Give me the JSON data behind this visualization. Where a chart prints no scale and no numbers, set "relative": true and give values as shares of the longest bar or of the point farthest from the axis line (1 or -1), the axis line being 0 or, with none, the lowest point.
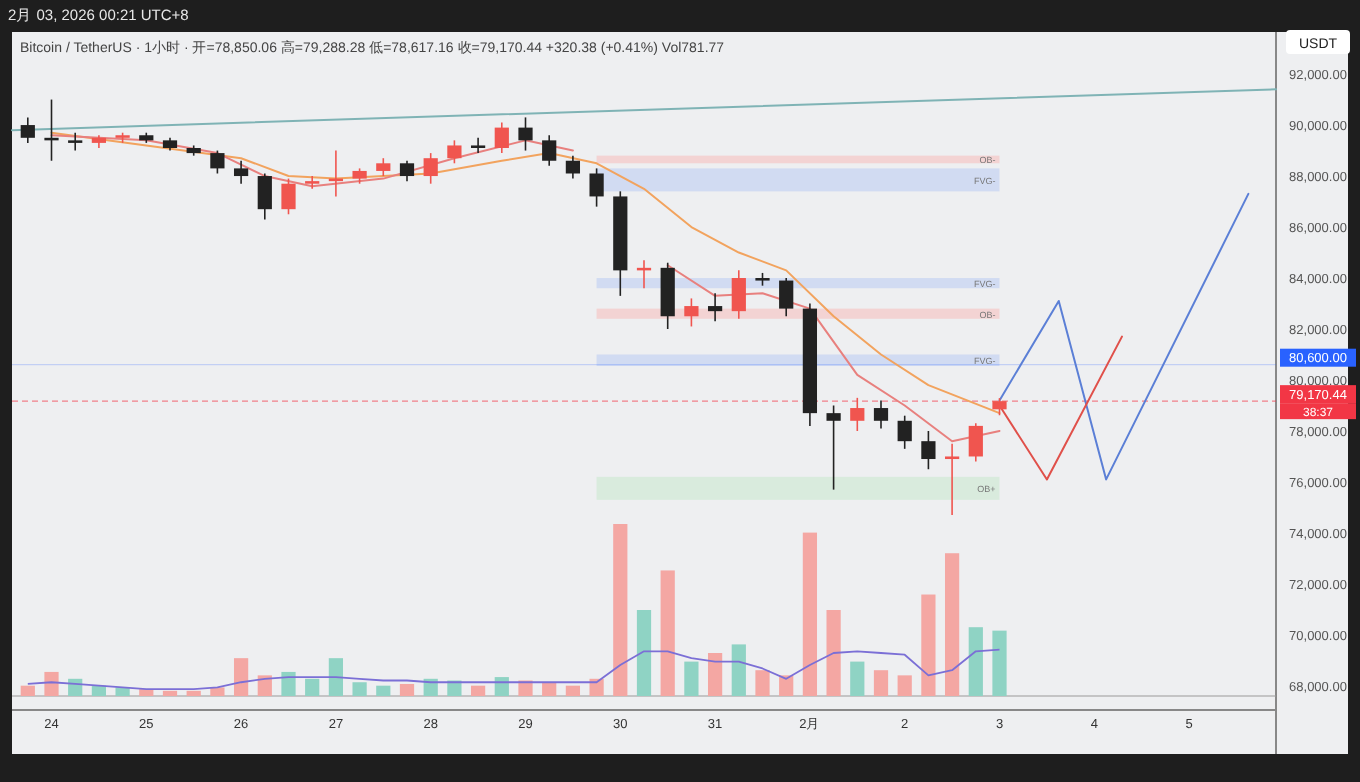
{
  "chart_data": [
    {
      "type": "candlestick",
      "title": "Bitcoin / TetherUS · 1小时 · 开=78,850.06 高=79,288.28 低=78,617.16 收=79,170.44 +320.38 (+0.41%) Vol781.77",
      "subtitle": "2月 03, 2026 00:21 UTC+8",
      "x": [
        "2026-01-23T18:00",
        "2026-01-24T00:00",
        "2026-01-24T06:00",
        "2026-01-24T12:00",
        "2026-01-24T18:00",
        "2026-01-25T00:00",
        "2026-01-25T06:00",
        "2026-01-25T12:00",
        "2026-01-25T18:00",
        "2026-01-26T00:00",
        "2026-01-26T06:00",
        "2026-01-26T12:00",
        "2026-01-26T18:00",
        "2026-01-27T00:00",
        "2026-01-27T06:00",
        "2026-01-27T12:00",
        "2026-01-27T18:00",
        "2026-01-28T00:00",
        "2026-01-28T06:00",
        "2026-01-28T12:00",
        "2026-01-28T18:00",
        "2026-01-29T00:00",
        "2026-01-29T06:00",
        "2026-01-29T12:00",
        "2026-01-29T18:00",
        "2026-01-30T00:00",
        "2026-01-30T06:00",
        "2026-01-30T12:00",
        "2026-01-30T18:00",
        "2026-01-31T00:00",
        "2026-01-31T06:00",
        "2026-01-31T12:00",
        "2026-01-31T18:00",
        "2026-02-01T00:00",
        "2026-02-01T06:00",
        "2026-02-01T12:00",
        "2026-02-01T18:00",
        "2026-02-02T00:00",
        "2026-02-02T06:00",
        "2026-02-02T12:00",
        "2026-02-02T18:00",
        "2026-02-03T00:00"
      ],
      "ohlc": [
        [
          90000,
          90300,
          89300,
          89500
        ],
        [
          89500,
          91000,
          88600,
          89400
        ],
        [
          89400,
          89700,
          89000,
          89300
        ],
        [
          89300,
          89600,
          89100,
          89500
        ],
        [
          89500,
          89700,
          89300,
          89600
        ],
        [
          89600,
          89700,
          89300,
          89400
        ],
        [
          89400,
          89500,
          89000,
          89100
        ],
        [
          89100,
          89200,
          88800,
          88900
        ],
        [
          88900,
          89000,
          88100,
          88300
        ],
        [
          88300,
          88600,
          87700,
          88000
        ],
        [
          88000,
          88100,
          86300,
          86700
        ],
        [
          86700,
          87900,
          86500,
          87700
        ],
        [
          87700,
          88000,
          87500,
          87800
        ],
        [
          87800,
          89000,
          87200,
          87900
        ],
        [
          87900,
          88300,
          87700,
          88200
        ],
        [
          88200,
          88700,
          88000,
          88500
        ],
        [
          88500,
          88600,
          87800,
          88000
        ],
        [
          88000,
          88900,
          87700,
          88700
        ],
        [
          88700,
          89400,
          88500,
          89200
        ],
        [
          89200,
          89500,
          88900,
          89100
        ],
        [
          89100,
          90100,
          88900,
          89900
        ],
        [
          89900,
          90300,
          89000,
          89400
        ],
        [
          89400,
          89600,
          88400,
          88600
        ],
        [
          88600,
          88800,
          87900,
          88100
        ],
        [
          88100,
          88300,
          86800,
          87200
        ],
        [
          87200,
          87400,
          83300,
          84300
        ],
        [
          84300,
          84700,
          83600,
          84400
        ],
        [
          84400,
          84600,
          82000,
          82500
        ],
        [
          82500,
          83200,
          82100,
          82900
        ],
        [
          82900,
          83400,
          82300,
          82700
        ],
        [
          82700,
          84300,
          82400,
          84000
        ],
        [
          84000,
          84200,
          83700,
          83900
        ],
        [
          83900,
          84000,
          82500,
          82800
        ],
        [
          82800,
          83000,
          78200,
          78700
        ],
        [
          78700,
          79000,
          75700,
          78400
        ],
        [
          78400,
          79300,
          78000,
          78900
        ],
        [
          78900,
          79200,
          78100,
          78400
        ],
        [
          78400,
          78600,
          77300,
          77600
        ],
        [
          77600,
          78000,
          76500,
          76900
        ],
        [
          76900,
          77500,
          74700,
          77000
        ],
        [
          77000,
          78300,
          76800,
          78200
        ],
        [
          78850.06,
          79288.28,
          78617.16,
          79170.44
        ]
      ],
      "colors": [
        "#222222",
        "#222222",
        "#222222",
        "#f0554f",
        "#f0554f",
        "#222222",
        "#222222",
        "#222222",
        "#222222",
        "#222222",
        "#222222",
        "#f0554f",
        "#f0554f",
        "#f0554f",
        "#f0554f",
        "#f0554f",
        "#222222",
        "#f0554f",
        "#f0554f",
        "#222222",
        "#f0554f",
        "#222222",
        "#222222",
        "#222222",
        "#222222",
        "#222222",
        "#f0554f",
        "#222222",
        "#f0554f",
        "#222222",
        "#f0554f",
        "#222222",
        "#222222",
        "#222222",
        "#222222",
        "#f0554f",
        "#222222",
        "#222222",
        "#222222",
        "#f0554f",
        "#f0554f",
        "#f0554f"
      ],
      "series": [
        {
          "type": "line",
          "color": "#f2a35e",
          "x": [
            "2026-01-24T00:00",
            "2026-01-25T00:00",
            "2026-01-26T00:00",
            "2026-01-26T12:00",
            "2026-01-27T00:00",
            "2026-01-28T00:00",
            "2026-01-28T18:00",
            "2026-01-29T06:00",
            "2026-01-29T18:00",
            "2026-01-30T06:00",
            "2026-01-30T18:00",
            "2026-01-31T06:00",
            "2026-01-31T18:00",
            "2026-02-01T06:00",
            "2026-02-01T18:00",
            "2026-02-02T06:00",
            "2026-02-03T00:00"
          ],
          "values": [
            89700,
            89200,
            88700,
            88000,
            87900,
            88100,
            88600,
            88900,
            88500,
            87500,
            86000,
            85000,
            84300,
            82500,
            81000,
            79800,
            78700
          ]
        },
        {
          "type": "line",
          "color": "#e8807e",
          "x": [
            "2026-01-24T00:00",
            "2026-01-25T00:00",
            "2026-01-25T18:00",
            "2026-01-26T06:00",
            "2026-01-26T18:00",
            "2026-01-27T12:00",
            "2026-01-28T06:00",
            "2026-01-29T00:00",
            "2026-01-29T12:00",
            "2026-01-30T00:00",
            "2026-01-30T12:00",
            "2026-01-31T00:00",
            "2026-01-31T12:00",
            "2026-02-01T00:00",
            "2026-02-01T12:00",
            "2026-02-02T00:00",
            "2026-02-02T12:00",
            "2026-02-03T00:00"
          ],
          "values": [
            89600,
            89400,
            88900,
            88000,
            87600,
            87900,
            88700,
            89400,
            89000,
            null,
            84500,
            83300,
            83400,
            82800,
            80200,
            79000,
            77600,
            78000
          ]
        },
        {
          "type": "line",
          "color": "#7fb3b5",
          "x": [
            "2026-01-23T14:00",
            "2026-02-05T22:00"
          ],
          "values": [
            89800,
            91400
          ]
        },
        {
          "type": "line",
          "color": "#5b7fd6",
          "x": [
            "2026-02-03T00:00",
            "2026-02-03T15:00",
            "2026-02-04T03:00",
            "2026-02-05T15:00"
          ],
          "values": [
            79200,
            83100,
            76100,
            87300
          ]
        },
        {
          "type": "line",
          "color": "#e0504a",
          "x": [
            "2026-02-03T00:00",
            "2026-02-03T12:00",
            "2026-02-04T07:00"
          ],
          "values": [
            79000,
            76100,
            81700
          ]
        }
      ],
      "bands": [
        {
          "axis": "y",
          "from": 87400,
          "to": 88300,
          "label": "FVG-",
          "color": "#c9d6f2"
        },
        {
          "axis": "y",
          "from": 88500,
          "to": 88800,
          "label": "OB-",
          "color": "#f4cccc"
        },
        {
          "axis": "y",
          "from": 83600,
          "to": 84000,
          "label": "FVG-",
          "color": "#c9d6f2"
        },
        {
          "axis": "y",
          "from": 82400,
          "to": 82800,
          "label": "OB-",
          "color": "#f4cccc"
        },
        {
          "axis": "y",
          "from": 80550,
          "to": 81000,
          "label": "FVG-",
          "color": "#c9d6f2"
        },
        {
          "axis": "y",
          "from": 75300,
          "to": 76200,
          "label": "OB+",
          "color": "#d3ead8"
        }
      ],
      "ref_lines": [
        {
          "axis": "y",
          "value": 80600,
          "label": "80,600.00",
          "color": "#2962ff"
        },
        {
          "axis": "y",
          "value": 79170.44,
          "label": "79,170.44",
          "color": "#f23645",
          "line_style": "dashed"
        }
      ],
      "annotations": [
        "USDT",
        "38:37"
      ],
      "xlim": [
        "2026-01-23T14:00",
        "2026-02-05T22:00"
      ],
      "xticks": [
        {
          "value": "2026-01-24",
          "label": "24"
        },
        {
          "value": "2026-01-25",
          "label": "25"
        },
        {
          "value": "2026-01-26",
          "label": "26"
        },
        {
          "value": "2026-01-27",
          "label": "27"
        },
        {
          "value": "2026-01-28",
          "label": "28"
        },
        {
          "value": "2026-01-29",
          "label": "29"
        },
        {
          "value": "2026-01-30",
          "label": "30"
        },
        {
          "value": "2026-01-31",
          "label": "31"
        },
        {
          "value": "2026-02-01",
          "label": "2月"
        },
        {
          "value": "2026-02-02",
          "label": "2"
        },
        {
          "value": "2026-02-03",
          "label": "3"
        },
        {
          "value": "2026-02-04",
          "label": "4"
        },
        {
          "value": "2026-02-05",
          "label": "5"
        }
      ],
      "ylim": [
        65330,
        93650
      ],
      "yticks": [
        {
          "value": 68000,
          "label": "68,000.00"
        },
        {
          "value": 70000,
          "label": "70,000.00"
        },
        {
          "value": 72000,
          "label": "72,000.00"
        },
        {
          "value": 74000,
          "label": "74,000.00"
        },
        {
          "value": 76000,
          "label": "76,000.00"
        },
        {
          "value": 78000,
          "label": "78,000.00"
        },
        {
          "value": 80000,
          "label": "80,000.00"
        },
        {
          "value": 82000,
          "label": "82,000.00"
        },
        {
          "value": 84000,
          "label": "84,000.00"
        },
        {
          "value": 86000,
          "label": "86,000.00"
        },
        {
          "value": 88000,
          "label": "88,000.00"
        },
        {
          "value": 90000,
          "label": "90,000.00"
        },
        {
          "value": 92000,
          "label": "92,000.00"
        }
      ],
      "grid": false
    },
    {
      "type": "bar",
      "relative": true,
      "tick_labels": false,
      "x": [
        "2026-01-23T18:00",
        "2026-01-24T00:00",
        "2026-01-24T06:00",
        "2026-01-24T12:00",
        "2026-01-24T18:00",
        "2026-01-25T00:00",
        "2026-01-25T06:00",
        "2026-01-25T12:00",
        "2026-01-25T18:00",
        "2026-01-26T00:00",
        "2026-01-26T06:00",
        "2026-01-26T12:00",
        "2026-01-26T18:00",
        "2026-01-27T00:00",
        "2026-01-27T06:00",
        "2026-01-27T12:00",
        "2026-01-27T18:00",
        "2026-01-28T00:00",
        "2026-01-28T06:00",
        "2026-01-28T12:00",
        "2026-01-28T18:00",
        "2026-01-29T00:00",
        "2026-01-29T06:00",
        "2026-01-29T12:00",
        "2026-01-29T18:00",
        "2026-01-30T00:00",
        "2026-01-30T06:00",
        "2026-01-30T12:00",
        "2026-01-30T18:00",
        "2026-01-31T00:00",
        "2026-01-31T06:00",
        "2026-01-31T12:00",
        "2026-01-31T18:00",
        "2026-02-01T00:00",
        "2026-02-01T06:00",
        "2026-02-01T12:00",
        "2026-02-01T18:00",
        "2026-02-02T00:00",
        "2026-02-02T06:00",
        "2026-02-02T12:00",
        "2026-02-02T18:00",
        "2026-02-03T00:00"
      ],
      "xlim": [
        "2026-01-23T14:00",
        "2026-02-05T22:00"
      ],
      "series": [
        {
          "colors": [
            "#f4a7a3",
            "#f4a7a3",
            "#8fd3c4",
            "#8fd3c4",
            "#8fd3c4",
            "#f4a7a3",
            "#f4a7a3",
            "#f4a7a3",
            "#f4a7a3",
            "#f4a7a3",
            "#f4a7a3",
            "#8fd3c4",
            "#8fd3c4",
            "#8fd3c4",
            "#8fd3c4",
            "#8fd3c4",
            "#f4a7a3",
            "#8fd3c4",
            "#8fd3c4",
            "#f4a7a3",
            "#8fd3c4",
            "#f4a7a3",
            "#f4a7a3",
            "#f4a7a3",
            "#f4a7a3",
            "#f4a7a3",
            "#8fd3c4",
            "#f4a7a3",
            "#8fd3c4",
            "#f4a7a3",
            "#8fd3c4",
            "#f4a7a3",
            "#f4a7a3",
            "#f4a7a3",
            "#f4a7a3",
            "#8fd3c4",
            "#f4a7a3",
            "#f4a7a3",
            "#f4a7a3",
            "#f4a7a3",
            "#8fd3c4",
            "#8fd3c4"
          ],
          "values": [
            0.06,
            0.14,
            0.1,
            0.06,
            0.05,
            0.04,
            0.03,
            0.03,
            0.05,
            0.22,
            0.12,
            0.14,
            0.1,
            0.22,
            0.08,
            0.06,
            0.07,
            0.1,
            0.09,
            0.06,
            0.11,
            0.09,
            0.08,
            0.06,
            0.1,
            1.0,
            0.5,
            0.73,
            0.2,
            0.25,
            0.3,
            0.15,
            0.12,
            0.95,
            0.5,
            0.2,
            0.15,
            0.12,
            0.59,
            0.83,
            0.4,
            0.38
          ]
        },
        {
          "type": "line",
          "color": "#7b6fd6",
          "values": [
            0.07,
            0.08,
            0.07,
            0.06,
            0.05,
            0.04,
            0.04,
            0.04,
            0.05,
            0.08,
            0.1,
            0.11,
            0.11,
            0.11,
            0.1,
            0.09,
            0.09,
            0.08,
            0.08,
            0.08,
            0.08,
            0.08,
            0.08,
            0.08,
            0.08,
            0.18,
            0.26,
            0.26,
            0.22,
            0.2,
            0.2,
            0.16,
            0.1,
            0.18,
            0.25,
            0.26,
            0.25,
            0.24,
            0.12,
            0.15,
            0.26,
            0.27
          ]
        }
      ]
    }
  ]
}
